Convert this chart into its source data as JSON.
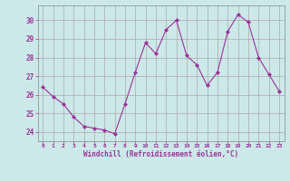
{
  "x": [
    0,
    1,
    2,
    3,
    4,
    5,
    6,
    7,
    8,
    9,
    10,
    11,
    12,
    13,
    14,
    15,
    16,
    17,
    18,
    19,
    20,
    21,
    22,
    23
  ],
  "y": [
    26.4,
    25.9,
    25.5,
    24.8,
    24.3,
    24.2,
    24.1,
    23.9,
    25.5,
    27.2,
    28.8,
    28.2,
    29.5,
    30.0,
    28.1,
    27.6,
    26.5,
    27.2,
    29.4,
    30.3,
    29.9,
    28.0,
    27.1,
    26.2
  ],
  "line_color": "#993399",
  "marker": "D",
  "marker_size": 2,
  "bg_color": "#cce8e8",
  "grid_color": "#aaaaaa",
  "xlabel": "Windchill (Refroidissement éolien,°C)",
  "xlabel_color": "#993399",
  "tick_color": "#993399",
  "ylim": [
    23.5,
    30.8
  ],
  "yticks": [
    24,
    25,
    26,
    27,
    28,
    29,
    30
  ],
  "xlim": [
    -0.5,
    23.5
  ],
  "xticks": [
    0,
    1,
    2,
    3,
    4,
    5,
    6,
    7,
    8,
    9,
    10,
    11,
    12,
    13,
    14,
    15,
    16,
    17,
    18,
    19,
    20,
    21,
    22,
    23
  ]
}
